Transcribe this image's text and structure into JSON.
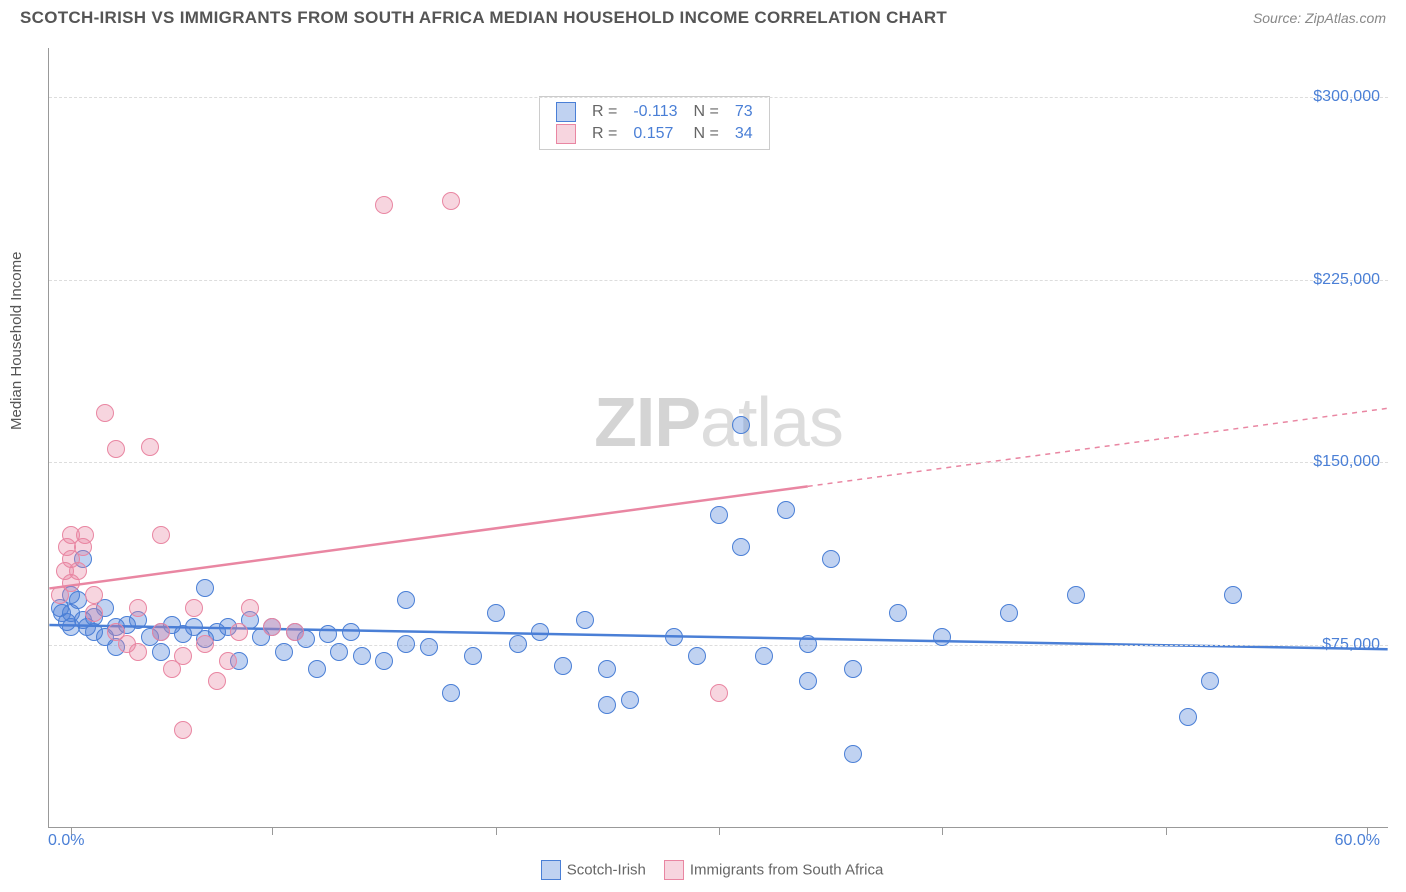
{
  "header": {
    "title": "SCOTCH-IRISH VS IMMIGRANTS FROM SOUTH AFRICA MEDIAN HOUSEHOLD INCOME CORRELATION CHART",
    "source": "Source: ZipAtlas.com"
  },
  "watermark": {
    "part1": "ZIP",
    "part2": "atlas"
  },
  "chart": {
    "type": "scatter",
    "ylabel": "Median Household Income",
    "xlim": [
      0,
      60
    ],
    "ylim": [
      0,
      320000
    ],
    "x_axis": {
      "min_label": "0.0%",
      "max_label": "60.0%",
      "tick_positions_pct": [
        1,
        10,
        20,
        30,
        40,
        50,
        59
      ]
    },
    "y_gridlines": [
      {
        "value": 75000,
        "label": "$75,000"
      },
      {
        "value": 150000,
        "label": "$150,000"
      },
      {
        "value": 225000,
        "label": "$225,000"
      },
      {
        "value": 300000,
        "label": "$300,000"
      }
    ],
    "grid_color": "#dddddd",
    "axis_color": "#999999",
    "label_color": "#4a7fd6",
    "background_color": "#ffffff",
    "dot_radius": 9,
    "dot_stroke_width": 1.3,
    "dot_fill_opacity": 0.35,
    "series": [
      {
        "name": "Scotch-Irish",
        "color": "#4a7fd6",
        "fill": "rgba(74,127,214,0.35)",
        "R": "-0.113",
        "N": "73",
        "trend": {
          "y_at_x0": 83000,
          "y_at_x60": 73000,
          "solid_to_x": 60
        },
        "points": [
          [
            0.5,
            90000
          ],
          [
            0.6,
            88000
          ],
          [
            0.8,
            84000
          ],
          [
            1,
            95000
          ],
          [
            1,
            88000
          ],
          [
            1,
            82000
          ],
          [
            1.3,
            93000
          ],
          [
            1.5,
            85000
          ],
          [
            1.5,
            110000
          ],
          [
            1.7,
            82000
          ],
          [
            2,
            86000
          ],
          [
            2,
            80000
          ],
          [
            2.5,
            78000
          ],
          [
            2.5,
            90000
          ],
          [
            3,
            82000
          ],
          [
            3,
            74000
          ],
          [
            3.5,
            83000
          ],
          [
            4,
            85000
          ],
          [
            4.5,
            78000
          ],
          [
            5,
            80000
          ],
          [
            5,
            72000
          ],
          [
            5.5,
            83000
          ],
          [
            6,
            79000
          ],
          [
            6.5,
            82000
          ],
          [
            7,
            98000
          ],
          [
            7,
            77000
          ],
          [
            7.5,
            80000
          ],
          [
            8,
            82000
          ],
          [
            8.5,
            68000
          ],
          [
            9,
            85000
          ],
          [
            9.5,
            78000
          ],
          [
            10,
            82000
          ],
          [
            10.5,
            72000
          ],
          [
            11,
            80000
          ],
          [
            11.5,
            77000
          ],
          [
            12,
            65000
          ],
          [
            12.5,
            79000
          ],
          [
            13,
            72000
          ],
          [
            13.5,
            80000
          ],
          [
            14,
            70000
          ],
          [
            15,
            68000
          ],
          [
            16,
            93000
          ],
          [
            16,
            75000
          ],
          [
            17,
            74000
          ],
          [
            18,
            55000
          ],
          [
            19,
            70000
          ],
          [
            20,
            88000
          ],
          [
            21,
            75000
          ],
          [
            22,
            80000
          ],
          [
            23,
            66000
          ],
          [
            24,
            85000
          ],
          [
            25,
            50000
          ],
          [
            25,
            65000
          ],
          [
            26,
            52000
          ],
          [
            28,
            78000
          ],
          [
            29,
            70000
          ],
          [
            30,
            128000
          ],
          [
            31,
            115000
          ],
          [
            31,
            165000
          ],
          [
            32,
            70000
          ],
          [
            33,
            130000
          ],
          [
            34,
            60000
          ],
          [
            34,
            75000
          ],
          [
            35,
            110000
          ],
          [
            36,
            65000
          ],
          [
            36,
            30000
          ],
          [
            38,
            88000
          ],
          [
            40,
            78000
          ],
          [
            43,
            88000
          ],
          [
            46,
            95000
          ],
          [
            51,
            45000
          ],
          [
            52,
            60000
          ],
          [
            53,
            95000
          ]
        ]
      },
      {
        "name": "Immigrants from South Africa",
        "color": "#e986a2",
        "fill": "rgba(233,134,162,0.35)",
        "R": "0.157",
        "N": "34",
        "trend": {
          "y_at_x0": 98000,
          "y_at_x60": 172000,
          "solid_to_x": 34
        },
        "points": [
          [
            0.5,
            95000
          ],
          [
            0.7,
            105000
          ],
          [
            0.8,
            115000
          ],
          [
            1,
            100000
          ],
          [
            1,
            110000
          ],
          [
            1,
            120000
          ],
          [
            1.3,
            105000
          ],
          [
            1.5,
            115000
          ],
          [
            1.6,
            120000
          ],
          [
            2,
            95000
          ],
          [
            2,
            88000
          ],
          [
            2.5,
            170000
          ],
          [
            3,
            155000
          ],
          [
            3,
            80000
          ],
          [
            3.5,
            75000
          ],
          [
            4,
            72000
          ],
          [
            4,
            90000
          ],
          [
            4.5,
            156000
          ],
          [
            5,
            80000
          ],
          [
            5,
            120000
          ],
          [
            5.5,
            65000
          ],
          [
            6,
            70000
          ],
          [
            6,
            40000
          ],
          [
            6.5,
            90000
          ],
          [
            7,
            75000
          ],
          [
            7.5,
            60000
          ],
          [
            8,
            68000
          ],
          [
            8.5,
            80000
          ],
          [
            9,
            90000
          ],
          [
            10,
            82000
          ],
          [
            11,
            80000
          ],
          [
            15,
            255000
          ],
          [
            18,
            257000
          ],
          [
            30,
            55000
          ]
        ]
      }
    ],
    "legend_bottom": [
      {
        "label": "Scotch-Irish"
      },
      {
        "label": "Immigrants from South Africa"
      }
    ]
  }
}
